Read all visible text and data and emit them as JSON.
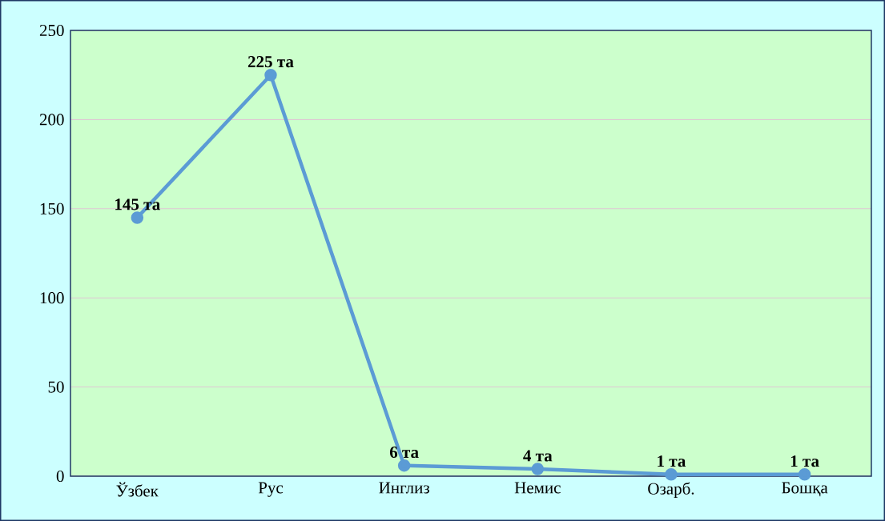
{
  "chart_data": {
    "type": "line",
    "categories": [
      "Ўзбек",
      "Рус",
      "Инглиз",
      "Немис",
      "Озарб.",
      "Бошқа"
    ],
    "series": [
      {
        "color": "#5b9bd5",
        "values": [
          145,
          225,
          6,
          4,
          1,
          1
        ]
      }
    ],
    "value_labels": [
      "145 та",
      "225 та",
      "6 та",
      "4 та",
      "1 та",
      "1 та"
    ],
    "ylim": [
      0,
      250
    ],
    "yticks": [
      0,
      50,
      100,
      150,
      200,
      250
    ],
    "grid": "y",
    "marker": "circle",
    "line_style": "solid"
  }
}
